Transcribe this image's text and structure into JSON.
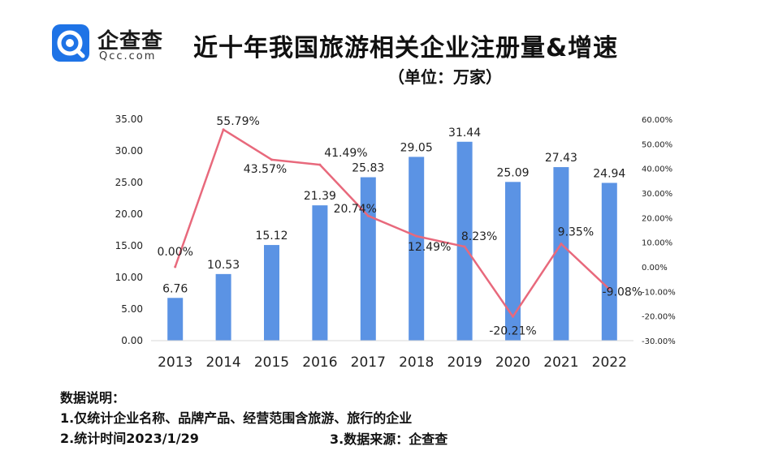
{
  "header": {
    "logo_cn": "企查查",
    "logo_en": "Qcc.com",
    "title": "近十年我国旅游相关企业注册量&增速",
    "subtitle": "（单位：万家）"
  },
  "colors": {
    "bar": "#5b93e4",
    "line": "#e8697c",
    "brand": "#1e73e6"
  },
  "chart_data": {
    "type": "bar",
    "categories": [
      "2013",
      "2014",
      "2015",
      "2016",
      "2017",
      "2018",
      "2019",
      "2020",
      "2021",
      "2022"
    ],
    "series": [
      {
        "type": "bar",
        "axis": "left",
        "values": [
          6.76,
          10.53,
          15.12,
          21.39,
          25.83,
          29.05,
          31.44,
          25.09,
          27.43,
          24.94
        ],
        "labels": [
          "6.76",
          "10.53",
          "15.12",
          "21.39",
          "25.83",
          "29.05",
          "31.44",
          "25.09",
          "27.43",
          "24.94"
        ]
      },
      {
        "type": "line",
        "axis": "right",
        "values": [
          0.0,
          55.79,
          43.57,
          41.49,
          20.74,
          12.49,
          8.23,
          -20.21,
          9.35,
          -9.08
        ],
        "labels": [
          "0.00%",
          "55.79%",
          "43.57%",
          "41.49%",
          "20.74%",
          "12.49%",
          "8.23%",
          "-20.21%",
          "9.35%",
          "-9.08%"
        ]
      }
    ],
    "ylim_left": [
      0,
      35
    ],
    "ylim_right": [
      -30,
      60
    ],
    "left_ticks": [
      "0.00",
      "5.00",
      "10.00",
      "15.00",
      "20.00",
      "25.00",
      "30.00",
      "35.00"
    ],
    "right_ticks": [
      "-30.00%",
      "-20.00%",
      "-10.00%",
      "0.00%",
      "10.00%",
      "20.00%",
      "30.00%",
      "40.00%",
      "50.00%",
      "60.00%"
    ],
    "grid": false,
    "legend": "none"
  },
  "notes": {
    "heading": "数据说明：",
    "line1": "1.仅统计企业名称、品牌产品、经营范围含旅游、旅行的企业",
    "line2": "2.统计时间2023/1/29",
    "line3": "3.数据来源：企查查"
  }
}
